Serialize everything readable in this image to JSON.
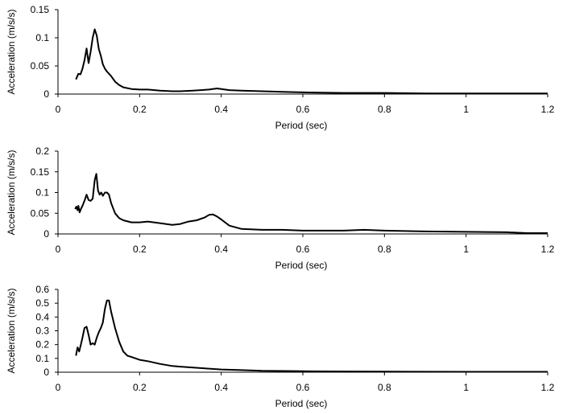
{
  "chart_data": [
    {
      "type": "line",
      "xlabel": "Period (sec)",
      "ylabel": "Acceleration (m/s/s)",
      "xlim": [
        0,
        1.2
      ],
      "ylim": [
        0,
        0.15
      ],
      "xticks": [
        0,
        0.2,
        0.4,
        0.6,
        0.8,
        1,
        1.2
      ],
      "xtick_labels": [
        "0",
        "0.2",
        "0.4",
        "0.6",
        "0.8",
        "1",
        "1.2"
      ],
      "yticks": [
        0,
        0.05,
        0.1,
        0.15
      ],
      "ytick_labels": [
        "0",
        "0.05",
        "0.1",
        "0.15"
      ],
      "grid": false,
      "line_color": "#000000",
      "series": [
        {
          "x": [
            0.044,
            0.05,
            0.055,
            0.06,
            0.065,
            0.07,
            0.075,
            0.08,
            0.085,
            0.09,
            0.095,
            0.1,
            0.105,
            0.11,
            0.115,
            0.12,
            0.13,
            0.14,
            0.15,
            0.16,
            0.18,
            0.2,
            0.22,
            0.25,
            0.28,
            0.3,
            0.33,
            0.35,
            0.37,
            0.39,
            0.4,
            0.42,
            0.45,
            0.5,
            0.55,
            0.6,
            0.7,
            0.8,
            0.9,
            1.0,
            1.1,
            1.2
          ],
          "values": [
            0.026,
            0.036,
            0.035,
            0.045,
            0.06,
            0.081,
            0.055,
            0.075,
            0.1,
            0.115,
            0.104,
            0.08,
            0.068,
            0.053,
            0.045,
            0.04,
            0.032,
            0.022,
            0.016,
            0.012,
            0.009,
            0.008,
            0.008,
            0.006,
            0.005,
            0.005,
            0.006,
            0.007,
            0.008,
            0.01,
            0.009,
            0.007,
            0.006,
            0.005,
            0.004,
            0.003,
            0.002,
            0.002,
            0.001,
            0.001,
            0.001,
            0.001
          ]
        }
      ]
    },
    {
      "type": "line",
      "xlabel": "Period (sec)",
      "ylabel": "Acceleration (m/s/s)",
      "xlim": [
        0,
        1.2
      ],
      "ylim": [
        0,
        0.2
      ],
      "xticks": [
        0,
        0.2,
        0.4,
        0.6,
        0.8,
        1,
        1.2
      ],
      "xtick_labels": [
        "0",
        "0.2",
        "0.4",
        "0.6",
        "0.8",
        "1",
        "1.2"
      ],
      "yticks": [
        0,
        0.05,
        0.1,
        0.15,
        0.2
      ],
      "ytick_labels": [
        "0",
        "0.05",
        "0.1",
        "0.15",
        "0.2"
      ],
      "grid": false,
      "line_color": "#000000",
      "series": [
        {
          "x": [
            0.042,
            0.045,
            0.048,
            0.05,
            0.053,
            0.056,
            0.06,
            0.065,
            0.07,
            0.075,
            0.08,
            0.085,
            0.09,
            0.094,
            0.098,
            0.102,
            0.106,
            0.11,
            0.115,
            0.12,
            0.125,
            0.13,
            0.14,
            0.15,
            0.16,
            0.18,
            0.2,
            0.22,
            0.25,
            0.28,
            0.3,
            0.32,
            0.34,
            0.36,
            0.37,
            0.38,
            0.39,
            0.4,
            0.42,
            0.45,
            0.5,
            0.55,
            0.6,
            0.7,
            0.75,
            0.8,
            0.9,
            1.0,
            1.1,
            1.15,
            1.2
          ],
          "values": [
            0.06,
            0.066,
            0.057,
            0.068,
            0.052,
            0.06,
            0.068,
            0.08,
            0.095,
            0.082,
            0.08,
            0.085,
            0.13,
            0.145,
            0.105,
            0.095,
            0.1,
            0.092,
            0.1,
            0.1,
            0.095,
            0.075,
            0.05,
            0.038,
            0.033,
            0.028,
            0.028,
            0.03,
            0.026,
            0.022,
            0.024,
            0.03,
            0.033,
            0.04,
            0.046,
            0.047,
            0.042,
            0.035,
            0.02,
            0.012,
            0.01,
            0.01,
            0.008,
            0.008,
            0.01,
            0.008,
            0.006,
            0.005,
            0.004,
            0.002,
            0.002
          ]
        }
      ]
    },
    {
      "type": "line",
      "xlabel": "Period (sec)",
      "ylabel": "Acceleration (m/s/s)",
      "xlim": [
        0,
        1.2
      ],
      "ylim": [
        0,
        0.6
      ],
      "xticks": [
        0,
        0.2,
        0.4,
        0.6,
        0.8,
        1,
        1.2
      ],
      "xtick_labels": [
        "0",
        "0.2",
        "0.4",
        "0.6",
        "0.8",
        "1",
        "1.2"
      ],
      "yticks": [
        0,
        0.1,
        0.2,
        0.3,
        0.4,
        0.5,
        0.6
      ],
      "ytick_labels": [
        "0",
        "0.1",
        "0.2",
        "0.3",
        "0.4",
        "0.5",
        "0.6"
      ],
      "grid": false,
      "line_color": "#000000",
      "series": [
        {
          "x": [
            0.044,
            0.048,
            0.052,
            0.056,
            0.06,
            0.065,
            0.07,
            0.075,
            0.08,
            0.085,
            0.09,
            0.095,
            0.1,
            0.105,
            0.11,
            0.115,
            0.12,
            0.125,
            0.13,
            0.14,
            0.15,
            0.16,
            0.17,
            0.18,
            0.2,
            0.22,
            0.25,
            0.28,
            0.3,
            0.35,
            0.4,
            0.45,
            0.5,
            0.6,
            0.7,
            0.8,
            1.0,
            1.2
          ],
          "values": [
            0.12,
            0.18,
            0.15,
            0.2,
            0.25,
            0.32,
            0.33,
            0.27,
            0.2,
            0.21,
            0.2,
            0.25,
            0.29,
            0.32,
            0.36,
            0.46,
            0.52,
            0.52,
            0.44,
            0.32,
            0.22,
            0.15,
            0.12,
            0.11,
            0.09,
            0.08,
            0.06,
            0.045,
            0.04,
            0.03,
            0.02,
            0.015,
            0.01,
            0.007,
            0.005,
            0.004,
            0.003,
            0.003
          ]
        }
      ]
    }
  ]
}
